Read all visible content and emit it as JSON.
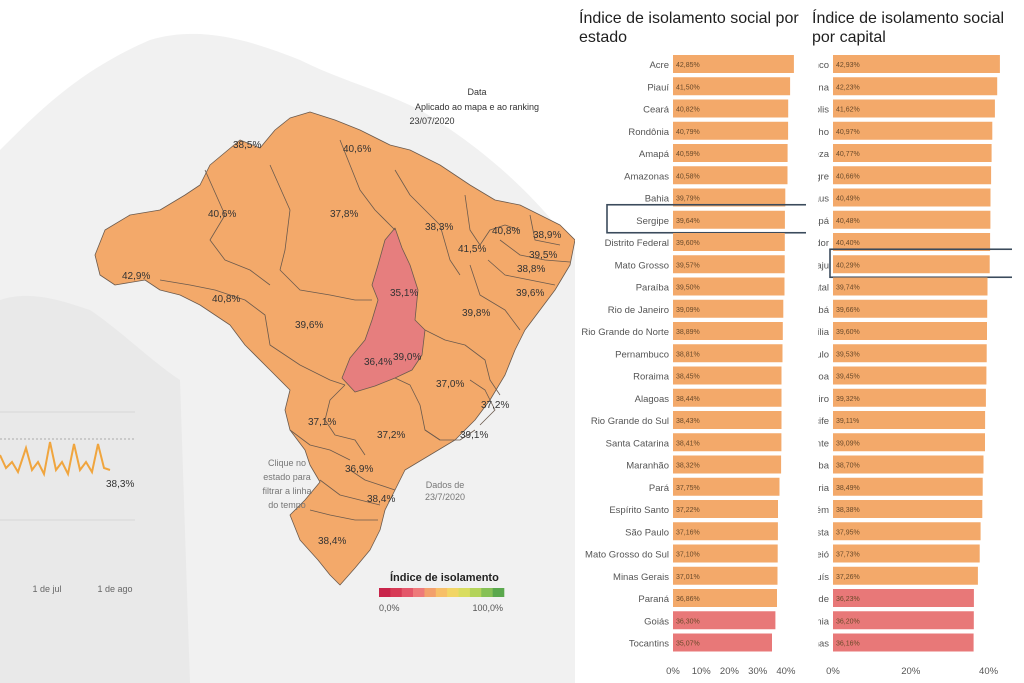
{
  "map": {
    "note_title": "Data",
    "note_line": "Aplicado ao mapa e ao ranking",
    "note_date": "23/07/2020",
    "hint_lines": [
      "Clique no",
      "estado para",
      "filtrar a linha",
      "do tempo"
    ],
    "dados_lines": [
      "Dados de",
      "23/7/2020"
    ],
    "legend_title": "Índice de isolamento",
    "legend_min": "0,0%",
    "legend_max": "100,0%",
    "legend_colors": [
      "#c8244a",
      "#d73a55",
      "#e4576a",
      "#ee7a7a",
      "#f3a06c",
      "#f7bf68",
      "#f2d565",
      "#d9dd5f",
      "#b3d35a",
      "#86c155",
      "#5aa84d"
    ],
    "state_color": "#f3a96a",
    "highlight_color": "#e67e7e",
    "timeline_color": "#f0a53e",
    "timeline_value": "38,3%",
    "timeline_ticks": [
      "1 de jul",
      "1 de ago"
    ],
    "state_labels": [
      "38,5%",
      "40,6%",
      "40,6%",
      "37,8%",
      "38,3%",
      "40,8%",
      "38,9%",
      "41,5%",
      "39,5%",
      "38,8%",
      "42,9%",
      "40,8%",
      "35,1%",
      "39,6%",
      "39,6%",
      "39,8%",
      "36,4%",
      "39,0%",
      "37,0%",
      "37,2%",
      "37,1%",
      "37,2%",
      "39,1%",
      "36,9%",
      "38,4%",
      "38,4%"
    ]
  },
  "chart_data": [
    {
      "type": "bar",
      "title": "Índice de isolamento social por estado",
      "categories": [
        "Acre",
        "Piauí",
        "Ceará",
        "Rondônia",
        "Amapá",
        "Amazonas",
        "Bahia",
        "Sergipe",
        "Distrito Federal",
        "Mato Grosso",
        "Paraíba",
        "Rio de Janeiro",
        "Rio Grande do Norte",
        "Pernambuco",
        "Roraima",
        "Alagoas",
        "Rio Grande do Sul",
        "Santa Catarina",
        "Maranhão",
        "Pará",
        "Espírito Santo",
        "São Paulo",
        "Mato Grosso do Sul",
        "Minas Gerais",
        "Paraná",
        "Goiás",
        "Tocantins"
      ],
      "values": [
        42.85,
        41.5,
        40.82,
        40.79,
        40.59,
        40.58,
        39.79,
        39.64,
        39.6,
        39.57,
        39.5,
        39.09,
        38.89,
        38.81,
        38.45,
        38.44,
        38.43,
        38.41,
        38.32,
        37.75,
        37.22,
        37.16,
        37.1,
        37.01,
        36.86,
        36.3,
        35.07
      ],
      "value_labels": [
        "42,85%",
        "41,50%",
        "40,82%",
        "40,79%",
        "40,59%",
        "40,58%",
        "39,79%",
        "39,64%",
        "39,60%",
        "39,57%",
        "39,50%",
        "39,09%",
        "38,89%",
        "38,81%",
        "38,45%",
        "38,44%",
        "38,43%",
        "38,41%",
        "38,32%",
        "37,75%",
        "37,22%",
        "37,16%",
        "37,10%",
        "37,01%",
        "36,86%",
        "36,30%",
        "35,07%"
      ],
      "colors": [
        "#f3a96a",
        "#f3a96a",
        "#f3a96a",
        "#f3a96a",
        "#f3a96a",
        "#f3a96a",
        "#f3a96a",
        "#f3a96a",
        "#f3a96a",
        "#f3a96a",
        "#f3a96a",
        "#f3a96a",
        "#f3a96a",
        "#f3a96a",
        "#f3a96a",
        "#f3a96a",
        "#f3a96a",
        "#f3a96a",
        "#f3a96a",
        "#f3a96a",
        "#f3a96a",
        "#f3a96a",
        "#f3a96a",
        "#f3a96a",
        "#f3a96a",
        "#e87878",
        "#e87878"
      ],
      "highlight": "Sergipe",
      "xlim": [
        0,
        45
      ],
      "xticks": [
        "0%",
        "10%",
        "20%",
        "30%",
        "40%"
      ]
    },
    {
      "type": "bar",
      "title": "Índice de isolamento social por capital",
      "categories": [
        "Rio Branco",
        "Teresina",
        "Florianópolis",
        "Porto Velho",
        "Fortaleza",
        "Porto Alegre",
        "Manaus",
        "Macapá",
        "Salvador",
        "Aracaju",
        "Natal",
        "Cuiabá",
        "Brasília",
        "São Paulo",
        "João Pessoa",
        "Rio de Janeiro",
        "Recife",
        "Belo Horizonte",
        "Curitiba",
        "Vitória",
        "Belém",
        "Boa Vista",
        "Maceió",
        "São Luís",
        "Campo Grande",
        "Goiânia",
        "Palmas"
      ],
      "values": [
        42.93,
        42.23,
        41.62,
        40.97,
        40.77,
        40.66,
        40.49,
        40.48,
        40.4,
        40.29,
        39.74,
        39.66,
        39.6,
        39.53,
        39.45,
        39.32,
        39.11,
        39.09,
        38.7,
        38.49,
        38.38,
        37.95,
        37.73,
        37.26,
        36.23,
        36.2,
        36.16
      ],
      "value_labels": [
        "42,93%",
        "42,23%",
        "41,62%",
        "40,97%",
        "40,77%",
        "40,66%",
        "40,49%",
        "40,48%",
        "40,40%",
        "40,29%",
        "39,74%",
        "39,66%",
        "39,60%",
        "39,53%",
        "39,45%",
        "39,32%",
        "39,11%",
        "39,09%",
        "38,70%",
        "38,49%",
        "38,38%",
        "37,95%",
        "37,73%",
        "37,26%",
        "36,23%",
        "36,20%",
        "36,16%"
      ],
      "colors": [
        "#f3a96a",
        "#f3a96a",
        "#f3a96a",
        "#f3a96a",
        "#f3a96a",
        "#f3a96a",
        "#f3a96a",
        "#f3a96a",
        "#f3a96a",
        "#f3a96a",
        "#f3a96a",
        "#f3a96a",
        "#f3a96a",
        "#f3a96a",
        "#f3a96a",
        "#f3a96a",
        "#f3a96a",
        "#f3a96a",
        "#f3a96a",
        "#f3a96a",
        "#f3a96a",
        "#f3a96a",
        "#f3a96a",
        "#f3a96a",
        "#e87878",
        "#e87878",
        "#e87878"
      ],
      "highlight": "Aracaju",
      "xlim": [
        0,
        45
      ],
      "xticks": [
        "0%",
        "20%",
        "40%"
      ]
    }
  ]
}
